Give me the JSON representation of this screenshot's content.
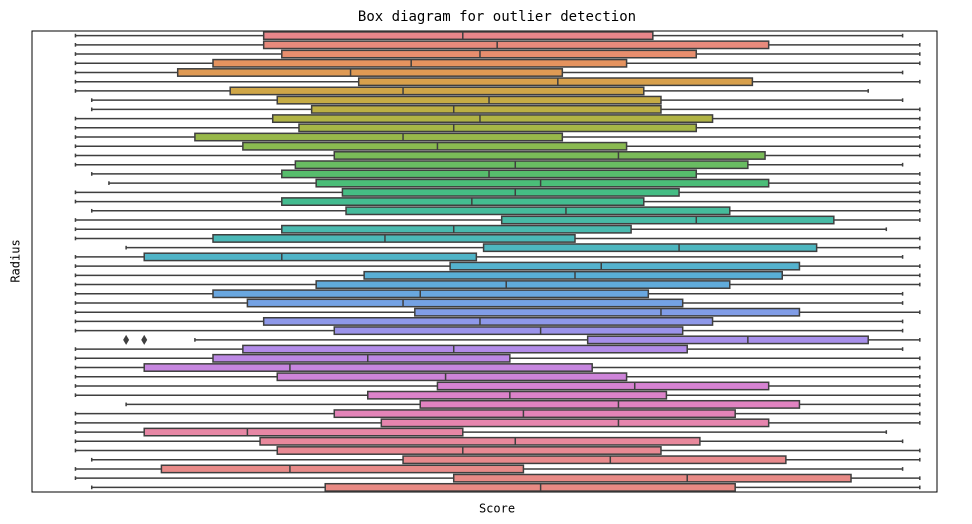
{
  "chart_data": {
    "type": "boxplot",
    "title": "Box diagram for outlier detection",
    "xlabel": "Score",
    "ylabel": "Radius",
    "xlim": [
      0,
      100
    ],
    "box_edge_color": "#3f3f3f",
    "boxes": [
      [
        4.8,
        25.6,
        47.6,
        68.6,
        96.2
      ],
      [
        4.8,
        25.6,
        51.4,
        81.4,
        98.1
      ],
      [
        4.8,
        27.6,
        49.5,
        73.4,
        98.1
      ],
      [
        4.8,
        20.0,
        41.9,
        65.7,
        98.1
      ],
      [
        4.8,
        16.1,
        35.2,
        58.6,
        96.2
      ],
      [
        4.8,
        36.1,
        58.1,
        79.6,
        98.1
      ],
      [
        4.8,
        21.9,
        41.0,
        67.6,
        92.4
      ],
      [
        6.6,
        27.1,
        50.5,
        69.5,
        96.2
      ],
      [
        6.6,
        30.9,
        46.6,
        69.5,
        98.1
      ],
      [
        4.8,
        26.6,
        49.5,
        75.2,
        98.1
      ],
      [
        4.8,
        29.5,
        46.6,
        73.4,
        98.1
      ],
      [
        4.8,
        18.0,
        41.0,
        58.6,
        98.1
      ],
      [
        4.8,
        23.3,
        44.8,
        65.7,
        98.1
      ],
      [
        4.8,
        33.4,
        64.8,
        81.0,
        98.1
      ],
      [
        4.8,
        29.1,
        53.4,
        79.1,
        96.2
      ],
      [
        6.6,
        27.6,
        50.5,
        73.4,
        98.1
      ],
      [
        8.5,
        31.4,
        56.2,
        81.4,
        98.1
      ],
      [
        4.8,
        34.3,
        53.4,
        71.5,
        98.1
      ],
      [
        4.8,
        27.6,
        48.6,
        67.6,
        98.1
      ],
      [
        6.6,
        34.7,
        59.0,
        77.1,
        98.1
      ],
      [
        4.8,
        51.9,
        73.4,
        88.6,
        98.1
      ],
      [
        4.8,
        27.6,
        46.6,
        66.2,
        94.4
      ],
      [
        4.8,
        20.0,
        39.0,
        60.0,
        98.1
      ],
      [
        10.4,
        49.9,
        71.5,
        86.7,
        98.1
      ],
      [
        4.8,
        12.4,
        27.6,
        49.1,
        96.2
      ],
      [
        4.8,
        46.2,
        62.9,
        84.8,
        98.1
      ],
      [
        4.8,
        36.7,
        60.0,
        82.9,
        98.1
      ],
      [
        4.8,
        31.4,
        52.4,
        77.1,
        98.1
      ],
      [
        4.8,
        20.0,
        42.9,
        68.1,
        96.2
      ],
      [
        4.8,
        23.8,
        41.0,
        71.9,
        96.2
      ],
      [
        4.8,
        42.3,
        69.5,
        84.8,
        98.1
      ],
      [
        4.8,
        25.6,
        49.5,
        75.2,
        96.2
      ],
      [
        4.8,
        33.4,
        56.2,
        71.9,
        96.2
      ],
      [
        18.0,
        61.4,
        79.1,
        92.4,
        98.1
      ],
      [
        4.8,
        23.3,
        46.6,
        72.4,
        96.2
      ],
      [
        4.8,
        20.0,
        37.1,
        52.8,
        98.1
      ],
      [
        4.8,
        12.4,
        28.5,
        61.9,
        98.1
      ],
      [
        4.8,
        27.1,
        45.7,
        65.7,
        98.1
      ],
      [
        4.8,
        44.8,
        66.6,
        81.4,
        98.1
      ],
      [
        4.8,
        37.1,
        52.8,
        70.1,
        98.1
      ],
      [
        10.4,
        42.9,
        64.8,
        84.8,
        98.1
      ],
      [
        4.8,
        33.4,
        54.3,
        77.7,
        98.1
      ],
      [
        4.8,
        38.6,
        64.8,
        81.4,
        98.1
      ],
      [
        4.8,
        12.4,
        23.8,
        47.6,
        94.4
      ],
      [
        4.8,
        25.2,
        53.4,
        73.8,
        96.2
      ],
      [
        4.8,
        27.1,
        47.6,
        69.5,
        98.1
      ],
      [
        6.6,
        41.0,
        63.9,
        83.3,
        98.1
      ],
      [
        4.8,
        14.3,
        28.5,
        54.3,
        96.2
      ],
      [
        4.8,
        46.6,
        72.4,
        90.5,
        98.1
      ],
      [
        6.6,
        32.4,
        56.2,
        77.7,
        98.1
      ]
    ],
    "fliers": [
      [],
      [],
      [],
      [],
      [],
      [],
      [],
      [],
      [],
      [],
      [],
      [],
      [],
      [],
      [],
      [],
      [],
      [],
      [],
      [],
      [],
      [],
      [],
      [],
      [],
      [],
      [],
      [],
      [],
      [],
      [],
      [],
      [],
      [
        10.4,
        12.4
      ],
      [],
      [],
      [],
      [],
      [],
      [],
      [],
      [],
      [],
      [],
      [],
      [],
      [],
      [],
      [],
      []
    ],
    "colors": [
      "#e8868a",
      "#e88a7c",
      "#e88e6e",
      "#e5935f",
      "#df9a54",
      "#d8a04c",
      "#cfa648",
      "#c5ab45",
      "#bbaf44",
      "#b0b344",
      "#a5b646",
      "#98b84a",
      "#8aba50",
      "#7abb58",
      "#69bc62",
      "#57bd6c",
      "#4bbd78",
      "#45bd84",
      "#44bc90",
      "#45bb9b",
      "#47baa5",
      "#49b9ae",
      "#4bb8b7",
      "#4db6bf",
      "#50b4c7",
      "#54b2ce",
      "#59afd5",
      "#60abdb",
      "#69a7e0",
      "#74a2e4",
      "#819de7",
      "#8e98e9",
      "#9b93ea",
      "#a78fea",
      "#b28be8",
      "#bc88e4",
      "#c686df",
      "#ce84d9",
      "#d683d2",
      "#dc83ca",
      "#e183c1",
      "#e484b8",
      "#e685ae",
      "#e787a5",
      "#e8889c",
      "#e88993",
      "#e8898c",
      "#e88a88",
      "#e88a86",
      "#e88a84"
    ]
  }
}
